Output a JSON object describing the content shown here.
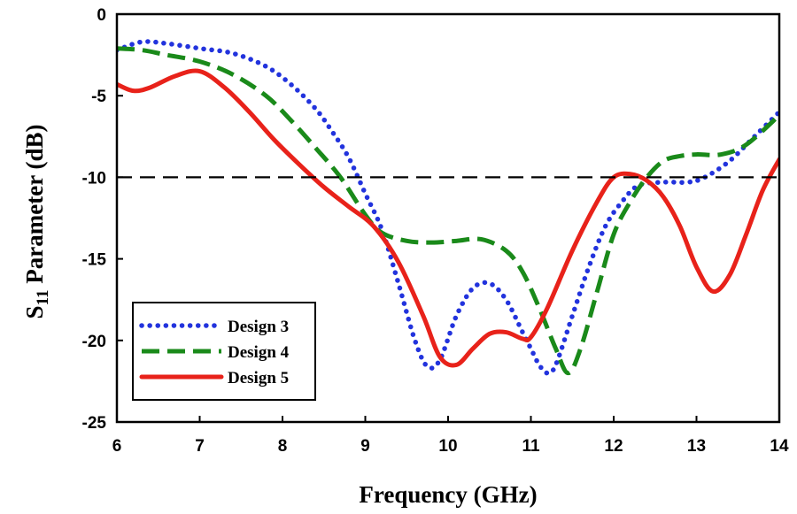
{
  "chart_data": {
    "type": "line",
    "title": "",
    "xlabel": "Frequency (GHz)",
    "ylabel_main": "S",
    "ylabel_sub": "11",
    "ylabel_rest": " Parameter (dB)",
    "xlim": [
      6,
      14
    ],
    "ylim": [
      -25,
      0
    ],
    "xticks": [
      6,
      7,
      8,
      9,
      10,
      11,
      12,
      13,
      14
    ],
    "yticks": [
      0,
      -5,
      -10,
      -15,
      -20,
      -25
    ],
    "grid": false,
    "reference_line": {
      "y": -10,
      "style": "dashed",
      "color": "#000000"
    },
    "legend_position": "lower-left",
    "series": [
      {
        "name": "Design 3",
        "style": "dotted",
        "color": "#2233dd",
        "x": [
          6.0,
          6.3,
          6.6,
          7.0,
          7.4,
          7.8,
          8.1,
          8.4,
          8.6,
          8.8,
          9.0,
          9.2,
          9.4,
          9.6,
          9.75,
          9.9,
          10.1,
          10.3,
          10.5,
          10.7,
          10.9,
          11.0,
          11.1,
          11.2,
          11.3,
          11.5,
          11.7,
          11.9,
          12.1,
          12.3,
          12.6,
          12.9,
          13.1,
          13.4,
          13.7,
          14.0
        ],
        "values": [
          -2.2,
          -1.7,
          -1.8,
          -2.1,
          -2.4,
          -3.2,
          -4.3,
          -5.8,
          -7.2,
          -8.8,
          -11.0,
          -13.2,
          -16.5,
          -20.0,
          -21.6,
          -21.2,
          -18.5,
          -16.8,
          -16.5,
          -17.5,
          -19.5,
          -20.5,
          -21.5,
          -22.0,
          -21.5,
          -18.5,
          -15.5,
          -13.0,
          -11.5,
          -10.5,
          -10.3,
          -10.3,
          -10.0,
          -9.0,
          -7.5,
          -6.0
        ]
      },
      {
        "name": "Design 4",
        "style": "dashed",
        "color": "#1a8a1a",
        "x": [
          6.0,
          6.3,
          6.6,
          7.0,
          7.4,
          7.8,
          8.1,
          8.4,
          8.7,
          9.0,
          9.2,
          9.5,
          9.8,
          10.1,
          10.4,
          10.7,
          10.9,
          11.1,
          11.3,
          11.45,
          11.6,
          11.8,
          12.0,
          12.2,
          12.4,
          12.6,
          12.8,
          13.0,
          13.3,
          13.6,
          14.0
        ],
        "values": [
          -2.1,
          -2.2,
          -2.5,
          -2.9,
          -3.7,
          -5.0,
          -6.5,
          -8.2,
          -10.0,
          -12.3,
          -13.4,
          -13.9,
          -14.0,
          -13.9,
          -13.8,
          -14.5,
          -15.8,
          -18.0,
          -20.5,
          -22.0,
          -20.5,
          -17.0,
          -13.5,
          -11.5,
          -10.0,
          -9.0,
          -8.7,
          -8.6,
          -8.6,
          -8.0,
          -6.2
        ]
      },
      {
        "name": "Design 5",
        "style": "solid",
        "color": "#e8221a",
        "x": [
          6.0,
          6.2,
          6.4,
          6.7,
          7.0,
          7.3,
          7.6,
          7.9,
          8.2,
          8.5,
          8.8,
          9.1,
          9.4,
          9.7,
          9.9,
          10.1,
          10.3,
          10.5,
          10.7,
          10.9,
          11.0,
          11.2,
          11.5,
          11.8,
          12.0,
          12.2,
          12.4,
          12.6,
          12.8,
          13.0,
          13.2,
          13.4,
          13.6,
          13.8,
          14.0
        ],
        "values": [
          -4.3,
          -4.7,
          -4.5,
          -3.8,
          -3.5,
          -4.5,
          -6.0,
          -7.7,
          -9.2,
          -10.6,
          -11.8,
          -13.0,
          -15.2,
          -18.5,
          -21.0,
          -21.5,
          -20.5,
          -19.6,
          -19.5,
          -19.9,
          -19.8,
          -18.0,
          -14.5,
          -11.5,
          -10.0,
          -9.8,
          -10.2,
          -11.2,
          -13.0,
          -15.5,
          -17.0,
          -16.0,
          -13.5,
          -10.8,
          -8.9
        ]
      }
    ]
  }
}
